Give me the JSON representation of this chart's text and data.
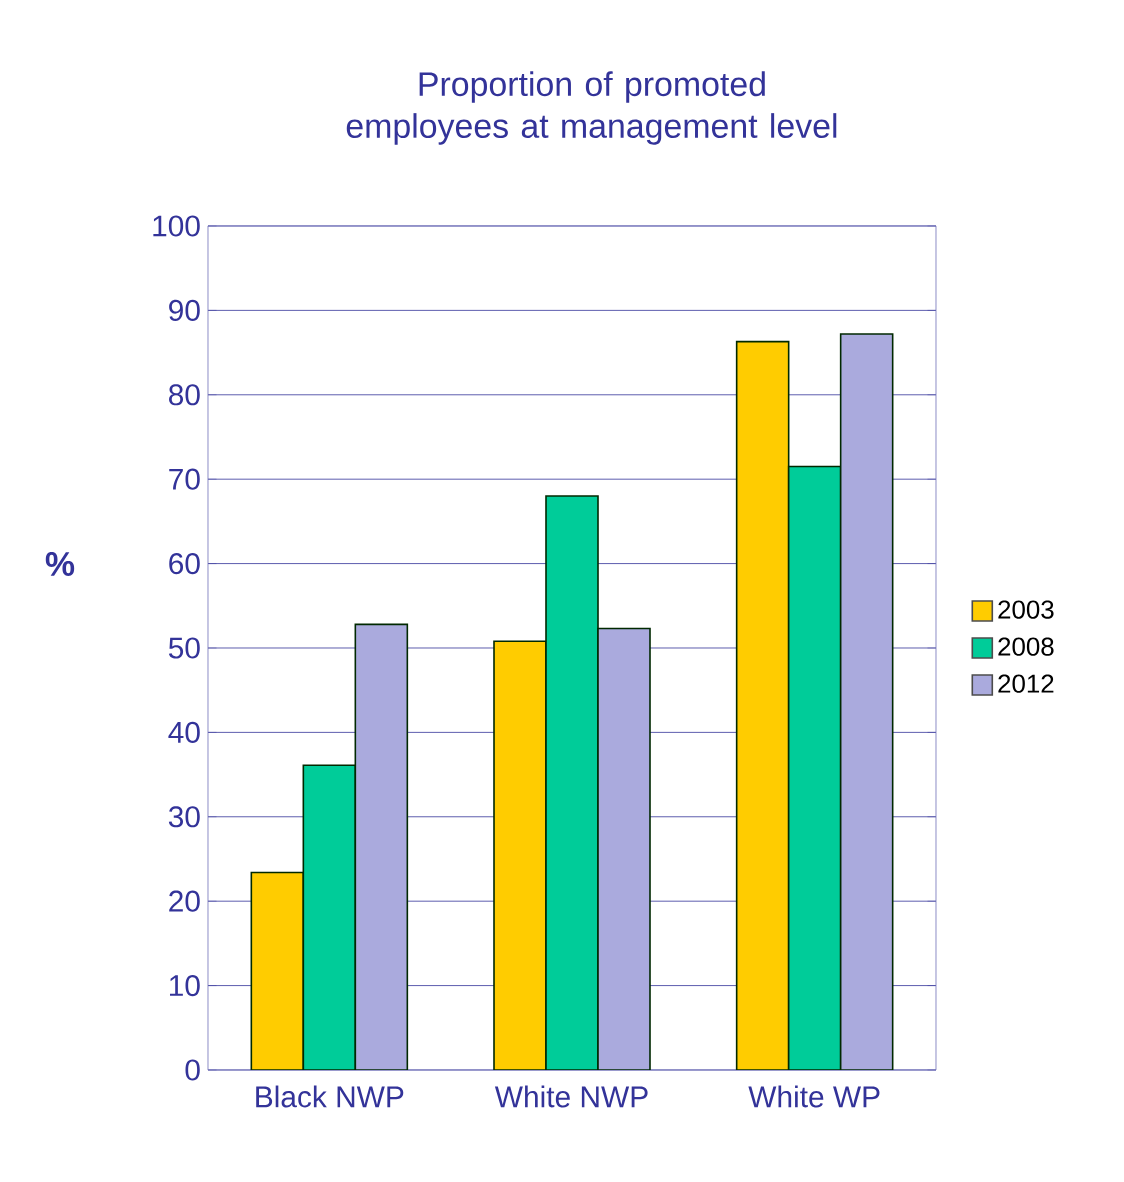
{
  "chart_data": {
    "type": "bar",
    "title": "Proportion of promoted employees at management level",
    "ylabel": "%",
    "categories": [
      "Black NWP",
      "White NWP",
      "White WP"
    ],
    "series": [
      {
        "name": "2003",
        "color": "#ffcc00",
        "values": [
          23.4,
          50.8,
          86.3
        ]
      },
      {
        "name": "2008",
        "color": "#00cc99",
        "values": [
          36.1,
          68.0,
          71.5
        ]
      },
      {
        "name": "2012",
        "color": "#aaaadd",
        "values": [
          52.8,
          52.3,
          87.2
        ]
      }
    ],
    "ylim": [
      0,
      100
    ],
    "yticks": [
      0,
      10,
      20,
      30,
      40,
      50,
      60,
      70,
      80,
      90,
      100
    ],
    "grid": "y",
    "legend": "right"
  }
}
